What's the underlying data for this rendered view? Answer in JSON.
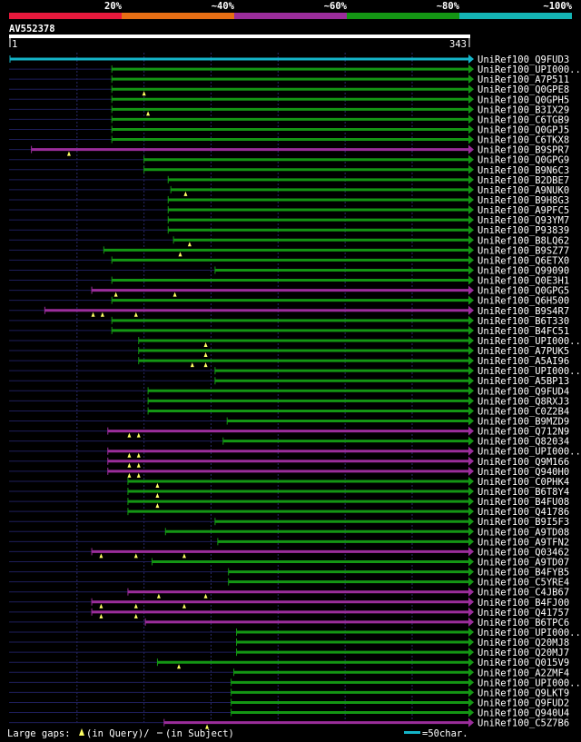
{
  "legend": {
    "labels": [
      "20%",
      "~40%",
      "~60%",
      "~80%",
      "~100%"
    ],
    "colors": [
      "#e6193c",
      "#e66e14",
      "#9b2d9b",
      "#149614",
      "#14b4b4"
    ]
  },
  "query": {
    "name": "AV552378",
    "start": "1",
    "end": "343",
    "length": 343
  },
  "colors": {
    "query_line": "#14b4c8",
    "identity_low": "#9b2d9b",
    "identity_high": "#149614",
    "gap_marker": "#ffff64",
    "grid": "#2a2a6a",
    "text": "#ffffff",
    "dim_line": "#1e1e5a"
  },
  "hits": [
    {
      "name": "UniRef100_Q9FUD3",
      "start": 1,
      "end": 343,
      "color": "query",
      "marks": []
    },
    {
      "name": "UniRef100_UPI000..",
      "start": 77,
      "end": 343,
      "color": "green",
      "marks": []
    },
    {
      "name": "UniRef100_A7P511",
      "start": 77,
      "end": 343,
      "color": "green",
      "marks": []
    },
    {
      "name": "UniRef100_Q0GPE8",
      "start": 77,
      "end": 343,
      "color": "green",
      "marks": [
        101
      ]
    },
    {
      "name": "UniRef100_Q0GPH5",
      "start": 77,
      "end": 343,
      "color": "green",
      "marks": []
    },
    {
      "name": "UniRef100_B3IX29",
      "start": 77,
      "end": 343,
      "color": "green",
      "marks": [
        104
      ]
    },
    {
      "name": "UniRef100_C6TGB9",
      "start": 77,
      "end": 343,
      "color": "green",
      "marks": []
    },
    {
      "name": "UniRef100_Q0GPJ5",
      "start": 77,
      "end": 343,
      "color": "green",
      "marks": []
    },
    {
      "name": "UniRef100_C6TKX8",
      "start": 77,
      "end": 343,
      "color": "green",
      "marks": []
    },
    {
      "name": "UniRef100_B9SPR7",
      "start": 17,
      "end": 343,
      "color": "purple",
      "marks": [
        45
      ]
    },
    {
      "name": "UniRef100_Q0GPG9",
      "start": 101,
      "end": 343,
      "color": "green",
      "marks": []
    },
    {
      "name": "UniRef100_B9N6C3",
      "start": 101,
      "end": 343,
      "color": "green",
      "marks": []
    },
    {
      "name": "UniRef100_B2DBE7",
      "start": 119,
      "end": 343,
      "color": "green",
      "marks": []
    },
    {
      "name": "UniRef100_A9NUK0",
      "start": 121,
      "end": 343,
      "color": "green",
      "marks": [
        132
      ]
    },
    {
      "name": "UniRef100_B9H8G3",
      "start": 119,
      "end": 343,
      "color": "green",
      "marks": []
    },
    {
      "name": "UniRef100_A9PFC5",
      "start": 119,
      "end": 343,
      "color": "green",
      "marks": []
    },
    {
      "name": "UniRef100_Q93YM7",
      "start": 119,
      "end": 343,
      "color": "green",
      "marks": []
    },
    {
      "name": "UniRef100_P93839",
      "start": 119,
      "end": 343,
      "color": "green",
      "marks": []
    },
    {
      "name": "UniRef100_B8LQ62",
      "start": 123,
      "end": 343,
      "color": "green",
      "marks": [
        135
      ]
    },
    {
      "name": "UniRef100_B9SZ77",
      "start": 71,
      "end": 343,
      "color": "green",
      "marks": [
        128
      ]
    },
    {
      "name": "UniRef100_Q6ETX0",
      "start": 77,
      "end": 343,
      "color": "green",
      "marks": []
    },
    {
      "name": "UniRef100_Q99090",
      "start": 154,
      "end": 343,
      "color": "green",
      "marks": []
    },
    {
      "name": "UniRef100_Q0E3H1",
      "start": 77,
      "end": 343,
      "color": "green",
      "marks": []
    },
    {
      "name": "UniRef100_Q0GPG5",
      "start": 62,
      "end": 343,
      "color": "purple",
      "marks": [
        80,
        124
      ]
    },
    {
      "name": "UniRef100_Q6H500",
      "start": 77,
      "end": 343,
      "color": "green",
      "marks": []
    },
    {
      "name": "UniRef100_B9S4R7",
      "start": 27,
      "end": 343,
      "color": "purple",
      "marks": [
        63,
        70,
        95
      ]
    },
    {
      "name": "UniRef100_B6T330",
      "start": 77,
      "end": 343,
      "color": "green",
      "marks": []
    },
    {
      "name": "UniRef100_B4FC51",
      "start": 77,
      "end": 343,
      "color": "green",
      "marks": []
    },
    {
      "name": "UniRef100_UPI000..",
      "start": 97,
      "end": 343,
      "color": "green",
      "marks": [
        147
      ]
    },
    {
      "name": "UniRef100_A7PUK5",
      "start": 97,
      "end": 343,
      "color": "green",
      "marks": [
        147
      ]
    },
    {
      "name": "UniRef100_A5AI96",
      "start": 97,
      "end": 343,
      "color": "green",
      "marks": [
        137,
        147
      ]
    },
    {
      "name": "UniRef100_UPI000..",
      "start": 154,
      "end": 343,
      "color": "green",
      "marks": []
    },
    {
      "name": "UniRef100_A5BP13",
      "start": 154,
      "end": 343,
      "color": "green",
      "marks": []
    },
    {
      "name": "UniRef100_Q9FUD4",
      "start": 104,
      "end": 343,
      "color": "green",
      "marks": []
    },
    {
      "name": "UniRef100_Q8RXJ3",
      "start": 104,
      "end": 343,
      "color": "green",
      "marks": []
    },
    {
      "name": "UniRef100_C0Z2B4",
      "start": 104,
      "end": 343,
      "color": "green",
      "marks": []
    },
    {
      "name": "UniRef100_B9MZD9",
      "start": 163,
      "end": 343,
      "color": "green",
      "marks": []
    },
    {
      "name": "UniRef100_Q712N9",
      "start": 74,
      "end": 343,
      "color": "purple",
      "marks": [
        90,
        97
      ]
    },
    {
      "name": "UniRef100_Q82034",
      "start": 160,
      "end": 343,
      "color": "green",
      "marks": []
    },
    {
      "name": "UniRef100_UPI000..",
      "start": 74,
      "end": 343,
      "color": "purple",
      "marks": [
        90,
        97
      ]
    },
    {
      "name": "UniRef100_Q9M166",
      "start": 74,
      "end": 343,
      "color": "purple",
      "marks": [
        90,
        97
      ]
    },
    {
      "name": "UniRef100_Q940H0",
      "start": 74,
      "end": 343,
      "color": "purple",
      "marks": [
        90,
        97
      ]
    },
    {
      "name": "UniRef100_C0PHK4",
      "start": 89,
      "end": 343,
      "color": "green",
      "marks": [
        111
      ]
    },
    {
      "name": "UniRef100_B6T8Y4",
      "start": 89,
      "end": 343,
      "color": "green",
      "marks": [
        111
      ]
    },
    {
      "name": "UniRef100_B4FU08",
      "start": 89,
      "end": 343,
      "color": "green",
      "marks": [
        111
      ]
    },
    {
      "name": "UniRef100_Q41786",
      "start": 89,
      "end": 343,
      "color": "green",
      "marks": []
    },
    {
      "name": "UniRef100_B9I5F3",
      "start": 154,
      "end": 343,
      "color": "green",
      "marks": []
    },
    {
      "name": "UniRef100_A9TD08",
      "start": 117,
      "end": 343,
      "color": "green",
      "marks": []
    },
    {
      "name": "UniRef100_A9TFN2",
      "start": 156,
      "end": 343,
      "color": "green",
      "marks": []
    },
    {
      "name": "UniRef100_Q03462",
      "start": 62,
      "end": 343,
      "color": "purple",
      "marks": [
        69,
        95,
        131
      ]
    },
    {
      "name": "UniRef100_A9TD07",
      "start": 107,
      "end": 343,
      "color": "green",
      "marks": []
    },
    {
      "name": "UniRef100_B4FYB5",
      "start": 164,
      "end": 343,
      "color": "green",
      "marks": []
    },
    {
      "name": "UniRef100_C5YRE4",
      "start": 164,
      "end": 343,
      "color": "green",
      "marks": []
    },
    {
      "name": "UniRef100_C4JB67",
      "start": 89,
      "end": 343,
      "color": "purple",
      "marks": [
        112,
        147
      ]
    },
    {
      "name": "UniRef100_B4FJ00",
      "start": 62,
      "end": 343,
      "color": "purple",
      "marks": [
        69,
        95,
        131
      ]
    },
    {
      "name": "UniRef100_Q41757",
      "start": 62,
      "end": 343,
      "color": "purple",
      "marks": [
        69,
        95
      ]
    },
    {
      "name": "UniRef100_B6TPC6",
      "start": 102,
      "end": 343,
      "color": "purple",
      "marks": []
    },
    {
      "name": "UniRef100_UPI000..",
      "start": 170,
      "end": 343,
      "color": "green",
      "marks": []
    },
    {
      "name": "UniRef100_Q20MJ8",
      "start": 170,
      "end": 343,
      "color": "green",
      "marks": []
    },
    {
      "name": "UniRef100_Q20MJ7",
      "start": 170,
      "end": 343,
      "color": "green",
      "marks": []
    },
    {
      "name": "UniRef100_Q015V9",
      "start": 111,
      "end": 343,
      "color": "green",
      "marks": [
        127
      ]
    },
    {
      "name": "UniRef100_A2ZMF4",
      "start": 168,
      "end": 343,
      "color": "green",
      "marks": []
    },
    {
      "name": "UniRef100_UPI000..",
      "start": 166,
      "end": 343,
      "color": "green",
      "marks": []
    },
    {
      "name": "UniRef100_Q9LKT9",
      "start": 166,
      "end": 343,
      "color": "green",
      "marks": []
    },
    {
      "name": "UniRef100_Q9FUD2",
      "start": 166,
      "end": 343,
      "color": "green",
      "marks": []
    },
    {
      "name": "UniRef100_Q940U4",
      "start": 166,
      "end": 343,
      "color": "green",
      "marks": []
    },
    {
      "name": "UniRef100_C5Z7B6",
      "start": 116,
      "end": 343,
      "color": "purple",
      "marks": [
        148
      ]
    }
  ],
  "footer": {
    "gaps_label": "Large gaps:",
    "gaps_query": "(in Query)/",
    "gaps_subject": "(in Subject)",
    "scale_label": "=50char."
  }
}
